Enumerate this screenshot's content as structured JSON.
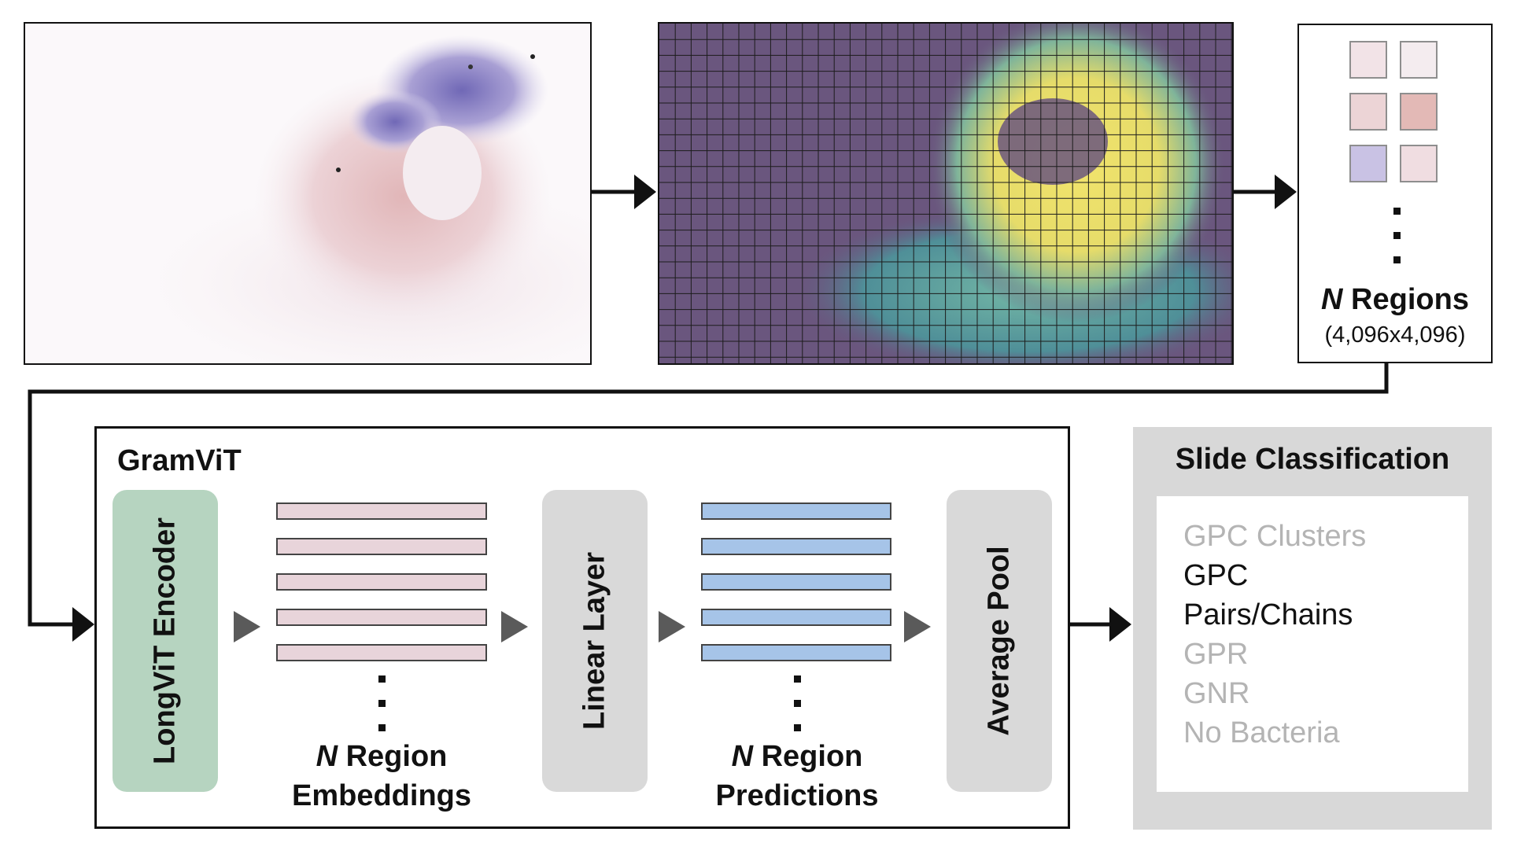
{
  "regions": {
    "n_symbol": "N",
    "label": "Regions",
    "size": "(4,096x4,096)"
  },
  "gramvit": {
    "title": "GramViT",
    "encoder_label": "LongViT Encoder",
    "linear_label": "Linear Layer",
    "pool_label": "Average Pool",
    "embeddings_caption": {
      "n_symbol": "N",
      "line1": "Region",
      "line2": "Embeddings"
    },
    "predictions_caption": {
      "n_symbol": "N",
      "line1": "Region",
      "line2": "Predictions"
    }
  },
  "classification": {
    "title": "Slide Classification",
    "items": [
      {
        "label": "GPC Clusters",
        "active": false
      },
      {
        "label": "GPC",
        "active": true
      },
      {
        "label": "Pairs/Chains",
        "active": true
      },
      {
        "label": "GPR",
        "active": false
      },
      {
        "label": "GNR",
        "active": false
      },
      {
        "label": "No Bacteria",
        "active": false
      }
    ]
  },
  "colors": {
    "encoder": "#b6d4c0",
    "grey_block": "#d9d9d9",
    "embedding_bar": "#e8d4da",
    "prediction_bar": "#a6c4e8",
    "active_text": "#111111",
    "inactive_text": "#b4b4b4",
    "mask_background": "#6a567e",
    "mask_tissue": "#eedc66",
    "mask_mid": "#5fa8a0"
  }
}
